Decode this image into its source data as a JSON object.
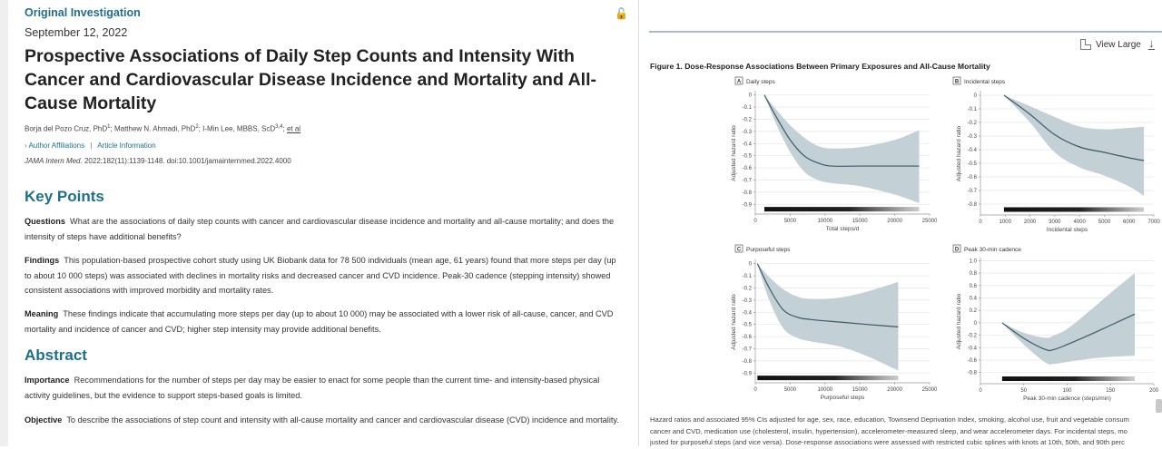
{
  "article": {
    "kicker": "Original Investigation",
    "date": "September 12, 2022",
    "title": "Prospective Associations of Daily Step Counts and Intensity With Cancer and Cardiovascular Disease Incidence and Mortality and All-Cause Mortality",
    "authors": [
      {
        "name": "Borja del Pozo Cruz, PhD",
        "sup": "1"
      },
      {
        "name": "Matthew N. Ahmadi, PhD",
        "sup": "2"
      },
      {
        "name": "I-Min Lee, MBBS, ScD",
        "sup": "3,4"
      }
    ],
    "et_al": "et al",
    "author_affiliations": "Author Affiliations",
    "article_information": "Article Information",
    "journal": "JAMA Intern Med.",
    "citation": "2022;182(11):1139-1148. doi:10.1001/jamainternmed.2022.4000",
    "icons": {
      "access": "unlock-icon"
    }
  },
  "key_points": {
    "heading": "Key Points",
    "items": [
      {
        "label": "Questions",
        "text": "What are the associations of daily step counts with cancer and cardiovascular disease incidence and mortality and all-cause mortality; and does the intensity of steps have additional benefits?"
      },
      {
        "label": "Findings",
        "text": "This population-based prospective cohort study using UK Biobank data for 78 500 individuals (mean age, 61 years) found that more steps per day (up to about 10 000 steps) was associated with declines in mortality risks and decreased cancer and CVD incidence. Peak-30 cadence (stepping intensity) showed consistent associations with improved morbidity and mortality rates."
      },
      {
        "label": "Meaning",
        "text": "These findings indicate that accumulating more steps per day (up to about 10 000) may be associated with a lower risk of all-cause, cancer, and CVD mortality and incidence of cancer and CVD; higher step intensity may provide additional benefits."
      }
    ]
  },
  "abstract": {
    "heading": "Abstract",
    "items": [
      {
        "label": "Importance",
        "text": "Recommendations for the number of steps per day may be easier to enact for some people than the current time- and intensity-based physical activity guidelines, but the evidence to support steps-based goals is limited."
      },
      {
        "label": "Objective",
        "text": "To describe the associations of step count and intensity with all-cause mortality and cancer and cardiovascular disease (CVD) incidence and mortality."
      }
    ]
  },
  "figure": {
    "view_large": "View Large",
    "title": "Figure 1.  Dose-Response Associations Between Primary Exposures and All-Cause Mortality",
    "caption_lines": [
      "Hazard ratios and associated 95% CIs adjusted for age, sex, race, education, Townsend Deprivation Index, smoking, alcohol use, fruit and vegetable consum",
      "cancer and CVD, medication use (cholesterol, insulin, hypertension), accelerometer-measured sleep, and wear accelerometer days. For incidental steps, mo",
      "justed for purposeful steps (and vice versa). Dose-response associations were assessed with restricted cubic splines with knots at 10th, 50th, and 90th perc"
    ],
    "colors": {
      "band": "#c3d0d6",
      "line": "#3d5a66",
      "grid": "#e6e6e6"
    }
  },
  "chart_data": [
    {
      "type": "line",
      "panel": "A",
      "title": "Daily steps",
      "xlabel": "Total steps/d",
      "ylabel": "Adjusted hazard ratio",
      "xlim": [
        0,
        25000
      ],
      "ylim": [
        -0.98,
        0.02
      ],
      "xticks": [
        0,
        5000,
        10000,
        15000,
        20000,
        25000
      ],
      "xtick_labels": [
        "0",
        "5000",
        "10000",
        "15000",
        "20000",
        "25000"
      ],
      "yticks": [
        0,
        -0.1,
        -0.2,
        -0.3,
        -0.4,
        -0.5,
        -0.6,
        -0.7,
        -0.8,
        -0.9
      ],
      "ytick_labels": [
        "0",
        "-0.1",
        "-0.2",
        "-0.3",
        "-0.4",
        "-0.5",
        "-0.6",
        "-0.7",
        "-0.8",
        "-0.9"
      ],
      "grid": true,
      "x": [
        1300,
        3000,
        5000,
        7000,
        9000,
        11000,
        15000,
        20000,
        23500
      ],
      "estimate": [
        0,
        -0.18,
        -0.37,
        -0.5,
        -0.56,
        -0.585,
        -0.585,
        -0.585,
        -0.585
      ],
      "upper": [
        0,
        -0.12,
        -0.25,
        -0.35,
        -0.42,
        -0.44,
        -0.43,
        -0.37,
        -0.29
      ],
      "lower": [
        0,
        -0.24,
        -0.47,
        -0.63,
        -0.7,
        -0.725,
        -0.75,
        -0.82,
        -0.89
      ],
      "rug_range": [
        1300,
        23500
      ],
      "rug_y": -0.94
    },
    {
      "type": "line",
      "panel": "B",
      "title": "Incidental steps",
      "xlabel": "Incidental steps",
      "ylabel": "Adjusted hazard ratio",
      "xlim": [
        0,
        7000
      ],
      "ylim": [
        -0.88,
        0.02
      ],
      "xticks": [
        0,
        1000,
        2000,
        3000,
        4000,
        5000,
        6000,
        7000
      ],
      "xtick_labels": [
        "0",
        "1000",
        "2000",
        "3000",
        "4000",
        "5000",
        "6000",
        "7000"
      ],
      "yticks": [
        0,
        -0.1,
        -0.2,
        -0.3,
        -0.4,
        -0.5,
        -0.6,
        -0.7,
        -0.8
      ],
      "ytick_labels": [
        "0",
        "-0.1",
        "-0.2",
        "-0.3",
        "-0.4",
        "-0.5",
        "-0.6",
        "-0.7",
        "-0.8"
      ],
      "grid": true,
      "x": [
        950,
        2000,
        3000,
        4000,
        5000,
        6000,
        6600
      ],
      "estimate": [
        0,
        -0.14,
        -0.29,
        -0.38,
        -0.42,
        -0.46,
        -0.48
      ],
      "upper": [
        0,
        -0.08,
        -0.16,
        -0.23,
        -0.25,
        -0.24,
        -0.23
      ],
      "lower": [
        0,
        -0.2,
        -0.42,
        -0.53,
        -0.59,
        -0.67,
        -0.74
      ],
      "rug_range": [
        950,
        6600
      ],
      "rug_y": -0.84
    },
    {
      "type": "line",
      "panel": "C",
      "title": "Purposeful steps",
      "xlabel": "Purposeful steps",
      "ylabel": "Adjusted hazard ratio",
      "xlim": [
        0,
        25000
      ],
      "ylim": [
        -0.98,
        0.02
      ],
      "xticks": [
        0,
        5000,
        10000,
        15000,
        20000,
        25000
      ],
      "xtick_labels": [
        "0",
        "5000",
        "10000",
        "15000",
        "20000",
        "25000"
      ],
      "yticks": [
        0,
        -0.1,
        -0.2,
        -0.3,
        -0.4,
        -0.5,
        -0.6,
        -0.7,
        -0.8,
        -0.9
      ],
      "ytick_labels": [
        "0",
        "-0.1",
        "-0.2",
        "-0.3",
        "-0.4",
        "-0.5",
        "-0.6",
        "-0.7",
        "-0.8",
        "-0.9"
      ],
      "grid": true,
      "x": [
        300,
        2000,
        4000,
        6000,
        8000,
        12000,
        16000,
        20500
      ],
      "estimate": [
        0,
        -0.2,
        -0.38,
        -0.44,
        -0.46,
        -0.48,
        -0.5,
        -0.52
      ],
      "upper": [
        0,
        -0.11,
        -0.21,
        -0.27,
        -0.29,
        -0.28,
        -0.23,
        -0.15
      ],
      "lower": [
        0,
        -0.3,
        -0.53,
        -0.61,
        -0.64,
        -0.68,
        -0.76,
        -0.88
      ],
      "rug_range": [
        300,
        20500
      ],
      "rug_y": -0.94
    },
    {
      "type": "line",
      "panel": "D",
      "title": "Peak 30-min cadence",
      "xlabel": "Peak 30-min cadence (steps/min)",
      "ylabel": "Adjusted hazard ratio",
      "xlim": [
        0,
        200
      ],
      "ylim": [
        -0.98,
        1.02
      ],
      "xticks": [
        0,
        50,
        100,
        150,
        200
      ],
      "xtick_labels": [
        "0",
        "50",
        "100",
        "150",
        "200"
      ],
      "yticks": [
        1.0,
        0.8,
        0.6,
        0.4,
        0.2,
        0,
        -0.2,
        -0.4,
        -0.6,
        -0.8
      ],
      "ytick_labels": [
        "1.0",
        "0.8",
        "0.6",
        "0.4",
        "0.2",
        "0",
        "-0.2",
        "-0.4",
        "-0.6",
        "-0.8"
      ],
      "grid": true,
      "x": [
        25,
        50,
        75,
        85,
        100,
        125,
        150,
        178
      ],
      "estimate": [
        0,
        -0.25,
        -0.43,
        -0.43,
        -0.35,
        -0.2,
        -0.04,
        0.14
      ],
      "upper": [
        0,
        -0.16,
        -0.24,
        -0.2,
        -0.1,
        0.18,
        0.48,
        0.8
      ],
      "lower": [
        0,
        -0.35,
        -0.64,
        -0.66,
        -0.63,
        -0.58,
        -0.55,
        -0.53
      ],
      "rug_range": [
        25,
        178
      ],
      "rug_y": -0.9
    }
  ]
}
